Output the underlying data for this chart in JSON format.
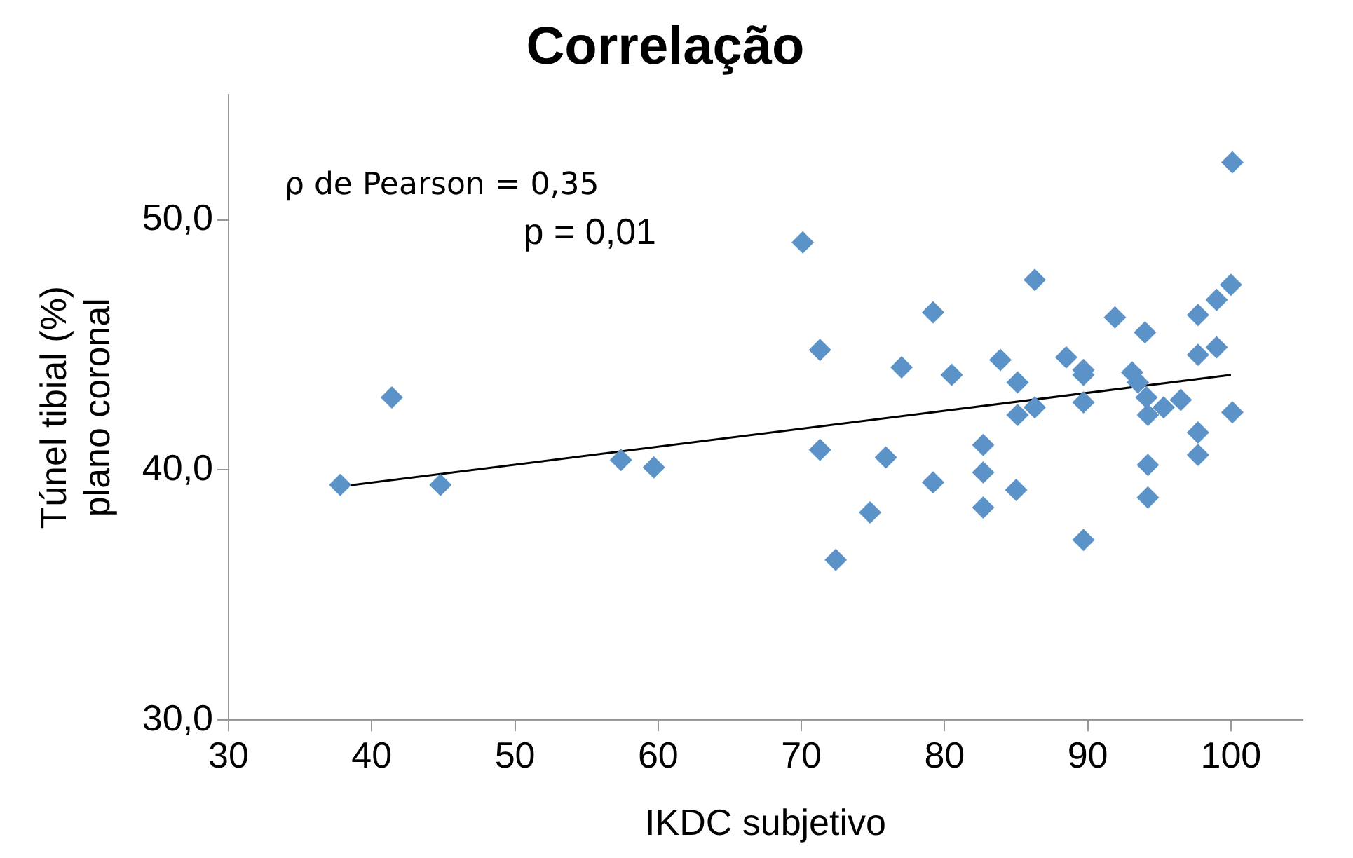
{
  "chart_data": {
    "type": "scatter",
    "title": "Correlação",
    "xlabel": "IKDC subjetivo",
    "ylabel": "Túnel tibial (%)\nplano coronal",
    "annotations": [
      "ρ de Pearson = 0,35",
      "p = 0,01"
    ],
    "xlim": [
      30,
      105
    ],
    "xticks": [
      30,
      40,
      50,
      60,
      70,
      80,
      90,
      100
    ],
    "ylim": [
      30,
      55
    ],
    "yticks": [
      {
        "value": 30,
        "label": "30,0"
      },
      {
        "value": 40,
        "label": "40,0"
      },
      {
        "value": 50,
        "label": "50,0"
      }
    ],
    "grid": false,
    "legend": false,
    "marker": "diamond",
    "series": [
      {
        "color": "#5b93c8",
        "x": [
          37.8,
          41.4,
          44.8,
          57.4,
          59.7,
          100.1,
          70.1,
          86.3,
          79.2,
          91.9,
          100,
          99,
          97.7,
          94,
          71.3,
          77,
          80.5,
          83.9,
          88.5,
          89.7,
          89.7,
          85.1,
          93.1,
          93.5,
          97.7,
          99,
          86.3,
          85.1,
          89.7,
          94.2,
          95.3,
          96.5,
          100.1,
          94.1,
          71.3,
          75.9,
          82.7,
          82.7,
          79.2,
          97.7,
          97.7,
          94.2,
          94.2,
          85,
          82.7,
          74.8,
          89.7,
          72.4
        ],
        "values": [
          39.4,
          42.9,
          39.4,
          40.4,
          40.1,
          52.3,
          49.1,
          47.6,
          46.3,
          46.1,
          47.4,
          46.8,
          46.2,
          45.5,
          44.8,
          44.1,
          43.8,
          44.4,
          44.5,
          44.0,
          43.8,
          43.5,
          43.9,
          43.5,
          44.6,
          44.9,
          42.5,
          42.2,
          42.7,
          42.2,
          42.5,
          42.8,
          42.3,
          42.9,
          40.8,
          40.5,
          41.0,
          39.9,
          39.5,
          41.5,
          40.6,
          40.2,
          38.9,
          39.2,
          38.5,
          38.3,
          37.2,
          36.4
        ]
      },
      {
        "type": "line",
        "marker": "none",
        "color": "#000000",
        "x": [
          38,
          100
        ],
        "values": [
          39.35,
          43.8
        ]
      }
    ]
  }
}
